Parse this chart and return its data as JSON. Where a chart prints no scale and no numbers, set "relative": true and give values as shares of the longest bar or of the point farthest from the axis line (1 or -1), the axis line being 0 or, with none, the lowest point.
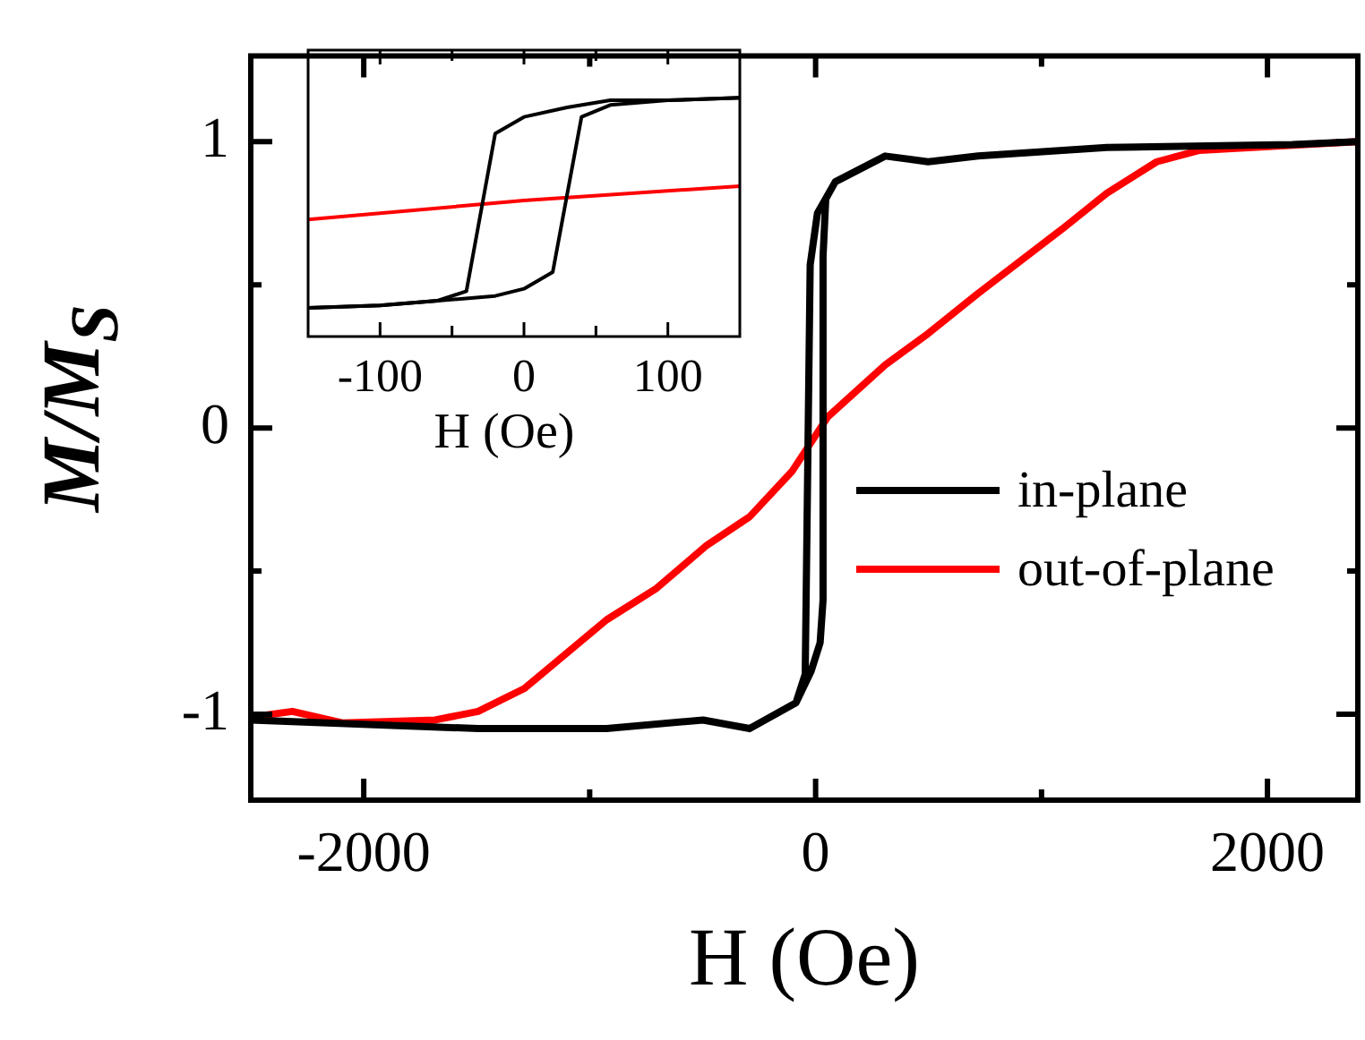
{
  "chart_data": [
    {
      "type": "line",
      "xlabel": "H (Oe)",
      "ylabel": "M/M$_{S}$",
      "xlim": [
        -2500,
        2400
      ],
      "xticks": [
        -2000,
        {
          "value": -1000,
          "label": null
        },
        0,
        {
          "value": 1000,
          "label": null
        },
        2000
      ],
      "ylim": [
        -1.3,
        1.3
      ],
      "yticks": [
        -1,
        {
          "value": -0.5,
          "label": null
        },
        0,
        {
          "value": 0.5,
          "label": null
        },
        1
      ],
      "legend": "right",
      "series": [
        {
          "name": "in-plane",
          "color": "#000000",
          "x": [
            -2500,
            -1494,
            -925,
            -498,
            -292,
            -87,
            -20,
            20,
            33,
            33,
            45,
            87,
            308,
            498,
            719,
            1289,
            2111,
            2400,
            2111,
            1289,
            719,
            498,
            308,
            87,
            8,
            -24,
            -46,
            -87,
            -292
          ],
          "values": [
            -1.02,
            -1.05,
            -1.05,
            -1.02,
            -1.05,
            -0.96,
            -0.85,
            -0.75,
            -0.6,
            0.6,
            0.8,
            0.86,
            0.95,
            0.93,
            0.95,
            0.98,
            0.99,
            1.0,
            0.99,
            0.98,
            0.95,
            0.93,
            0.95,
            0.86,
            0.75,
            0.57,
            -0.86,
            -0.96,
            -1.05
          ]
        },
        {
          "name": "out-of-plane",
          "color": "#ff0000",
          "x": [
            -2500,
            -2316,
            -2095,
            -1684,
            -1494,
            -1289,
            -925,
            -704,
            -482,
            -292,
            -103,
            55,
            308,
            498,
            719,
            1099,
            1289,
            1510,
            1700,
            2400
          ],
          "values": [
            -1.01,
            -0.99,
            -1.03,
            -1.02,
            -0.99,
            -0.91,
            -0.67,
            -0.56,
            -0.41,
            -0.31,
            -0.15,
            0.04,
            0.22,
            0.33,
            0.47,
            0.7,
            0.82,
            0.93,
            0.97,
            1.0
          ]
        }
      ]
    },
    {
      "type": "line",
      "relative": true,
      "xlabel": "H (Oe)",
      "xlim": [
        -150,
        150
      ],
      "xticks": [
        -100,
        {
          "value": -50,
          "label": null
        },
        0,
        {
          "value": 50,
          "label": null
        },
        100
      ],
      "series": [
        {
          "color": "#000000",
          "x": [
            -150,
            -100,
            -60,
            -20,
            0,
            20,
            40,
            60,
            100,
            150
          ],
          "values": [
            0.12,
            0.13,
            0.15,
            0.17,
            0.2,
            0.27,
            0.92,
            0.97,
            0.99,
            1.0
          ]
        },
        {
          "color": "#000000",
          "x": [
            -150,
            -100,
            -60,
            -40,
            -20,
            0,
            30,
            60,
            100,
            150
          ],
          "values": [
            0.12,
            0.13,
            0.15,
            0.19,
            0.85,
            0.92,
            0.96,
            0.99,
            0.99,
            1.0
          ]
        },
        {
          "color": "#ff0000",
          "x": [
            -150,
            0,
            150
          ],
          "values": [
            0.49,
            0.57,
            0.63
          ]
        }
      ]
    }
  ]
}
